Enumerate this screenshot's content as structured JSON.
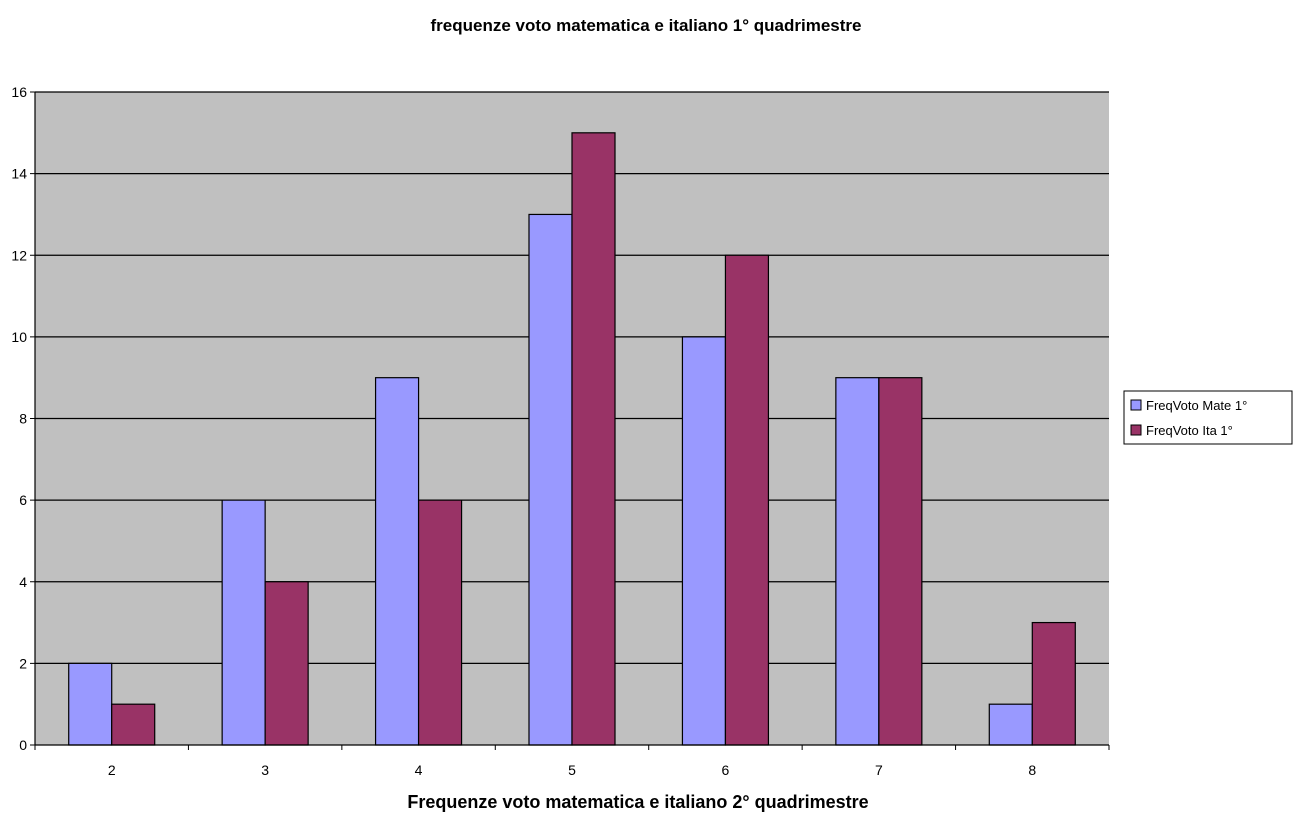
{
  "chart_data": {
    "type": "bar",
    "title": "frequenze voto matematica e italiano 1° quadrimestre",
    "xlabel": "Frequenze voto matematica e italiano 2° quadrimestre",
    "ylabel": "",
    "categories": [
      "2",
      "3",
      "4",
      "5",
      "6",
      "7",
      "8"
    ],
    "series": [
      {
        "name": "FreqVoto Mate 1°",
        "color": "#9999ff",
        "values": [
          2,
          6,
          9,
          13,
          10,
          9,
          1
        ]
      },
      {
        "name": "FreqVoto Ita 1°",
        "color": "#993366",
        "values": [
          1,
          4,
          6,
          15,
          12,
          9,
          3
        ]
      }
    ],
    "ylim": [
      0,
      16
    ],
    "yticks": [
      0,
      2,
      4,
      6,
      8,
      10,
      12,
      14,
      16
    ],
    "ytick_labels": [
      "0",
      "2",
      "4",
      "6",
      "8",
      "10",
      "12",
      "14",
      "16"
    ],
    "plot_background": "#c0c0c0",
    "gridlines": "horizontal",
    "legend_position": "right"
  }
}
